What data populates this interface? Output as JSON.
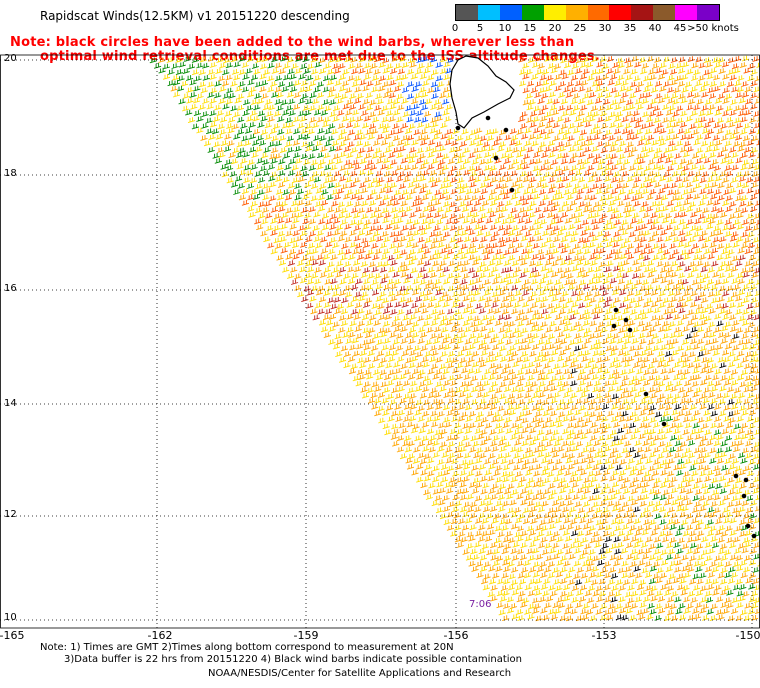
{
  "header": {
    "title": "Rapidscat Winds(12.5KM) v1 20151220 descending"
  },
  "notes": {
    "line1": "Note: black circles have been added to the wind barbs, wherever less than",
    "line2": "optimal wind retrieval conditions are met due to the ISS altitude changes."
  },
  "speed_scale": {
    "labels": [
      "0",
      "5",
      "10",
      "15",
      "20",
      "25",
      "30",
      "35",
      "40",
      "45",
      ">50 knots"
    ],
    "colors": [
      "#555555",
      "#00bfff",
      "#0060ff",
      "#00a000",
      "#ffee00",
      "#ffb000",
      "#ff6a00",
      "#ff0000",
      "#a51414",
      "#8b5a2b",
      "#ff00ff",
      "#7a00c8"
    ],
    "units": "knots"
  },
  "map": {
    "lat_labels": [
      "20",
      "18",
      "16",
      "14",
      "12",
      "10"
    ],
    "lon_labels": [
      "-165",
      "-162",
      "-159",
      "-156",
      "-153",
      "-150"
    ],
    "swath_time": "7:06",
    "island": "Hawaii (Big Island)"
  },
  "footer": {
    "line1": "Note: 1) Times are GMT 2)Times along bottom correspond to measurement at 20N",
    "line2": "3)Data buffer is 22 hrs from 20151220 4) Black wind barbs indicate possible contamination",
    "credit": "NOAA/NESDIS/Center for Satellite Applications and Research"
  }
}
